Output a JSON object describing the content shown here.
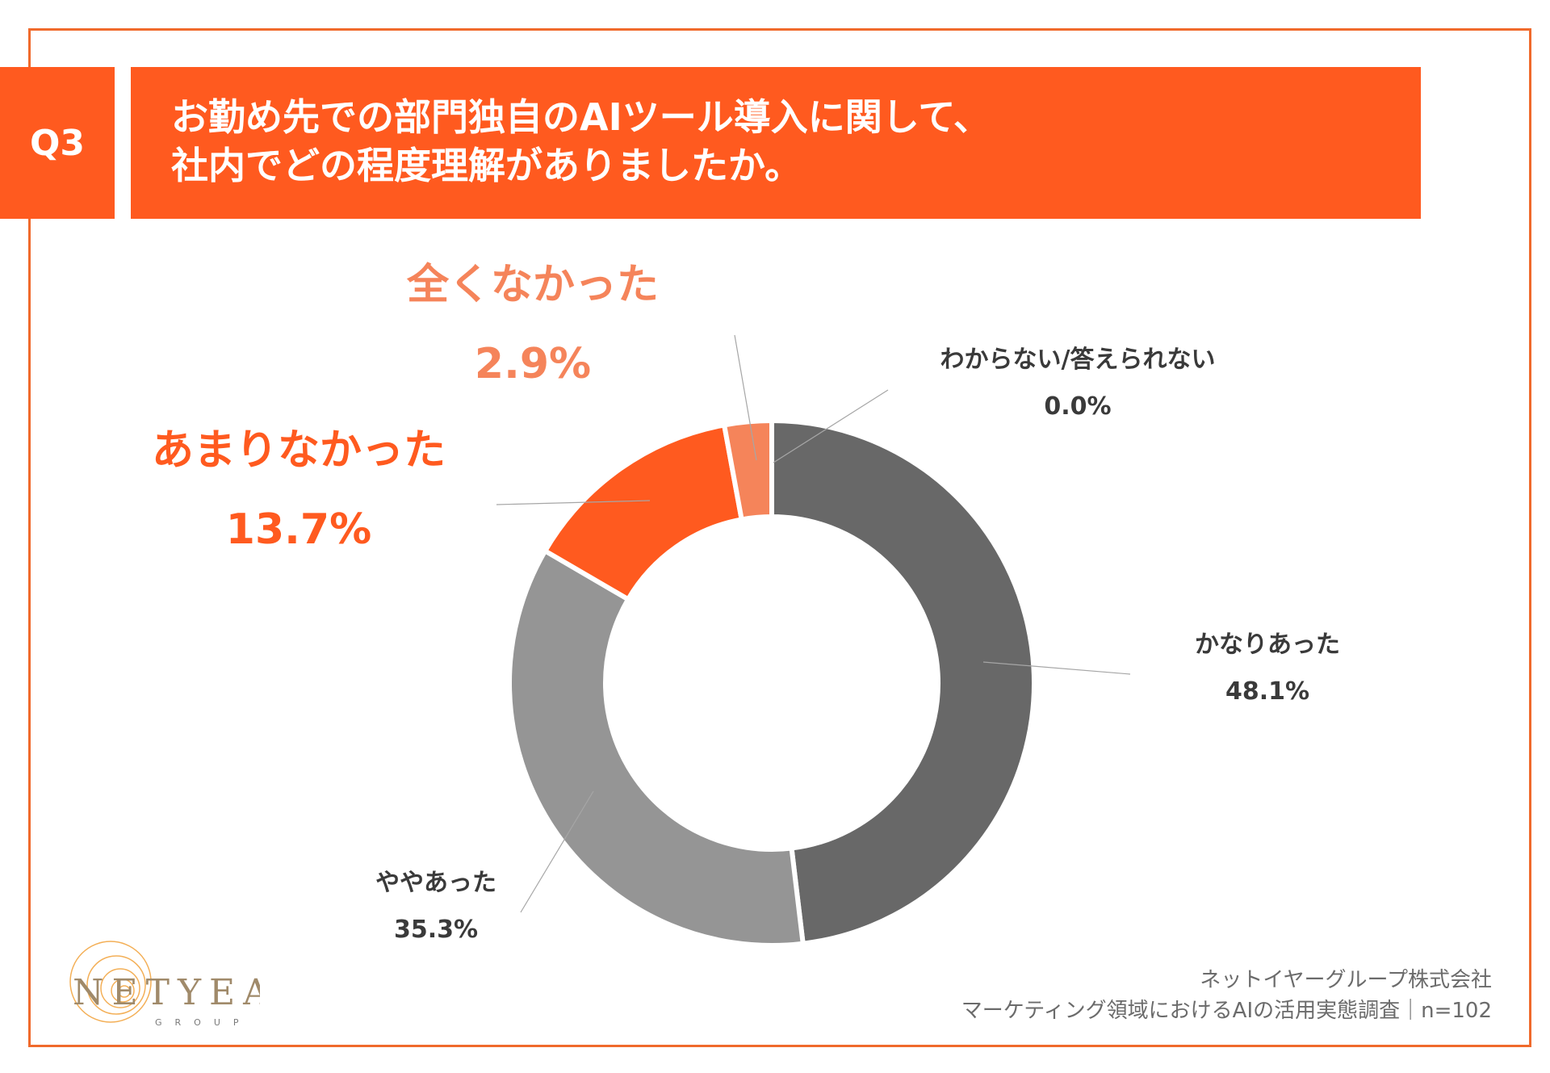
{
  "header": {
    "badge": "Q3",
    "title_line1": "お勤め先での部門独自のAIツール導入に関して、",
    "title_line2": "社内でどの程度理解がありましたか。"
  },
  "chart_data": {
    "type": "pie",
    "variant": "donut",
    "categories": [
      "かなりあった",
      "ややあった",
      "あまりなかった",
      "全くなかった",
      "わからない/答えられない"
    ],
    "values": [
      48.1,
      35.3,
      13.7,
      2.9,
      0.0
    ],
    "value_labels": [
      "48.1%",
      "35.3%",
      "13.7%",
      "2.9%",
      "0.0%"
    ],
    "colors": [
      "#686868",
      "#959595",
      "#ff5a1f",
      "#f5845a",
      "#c0c0c0"
    ],
    "label_colors": [
      "#3a3a3a",
      "#3a3a3a",
      "#ff5a1f",
      "#f5845a",
      "#3a3a3a"
    ]
  },
  "footer": {
    "company": "ネットイヤーグループ株式会社",
    "survey": "マーケティング領域におけるAIの活用実態調査｜n=102"
  },
  "logo": {
    "text": "NETYEAR",
    "sub": "GROUP",
    "icon": "nautilus-shell-icon"
  }
}
